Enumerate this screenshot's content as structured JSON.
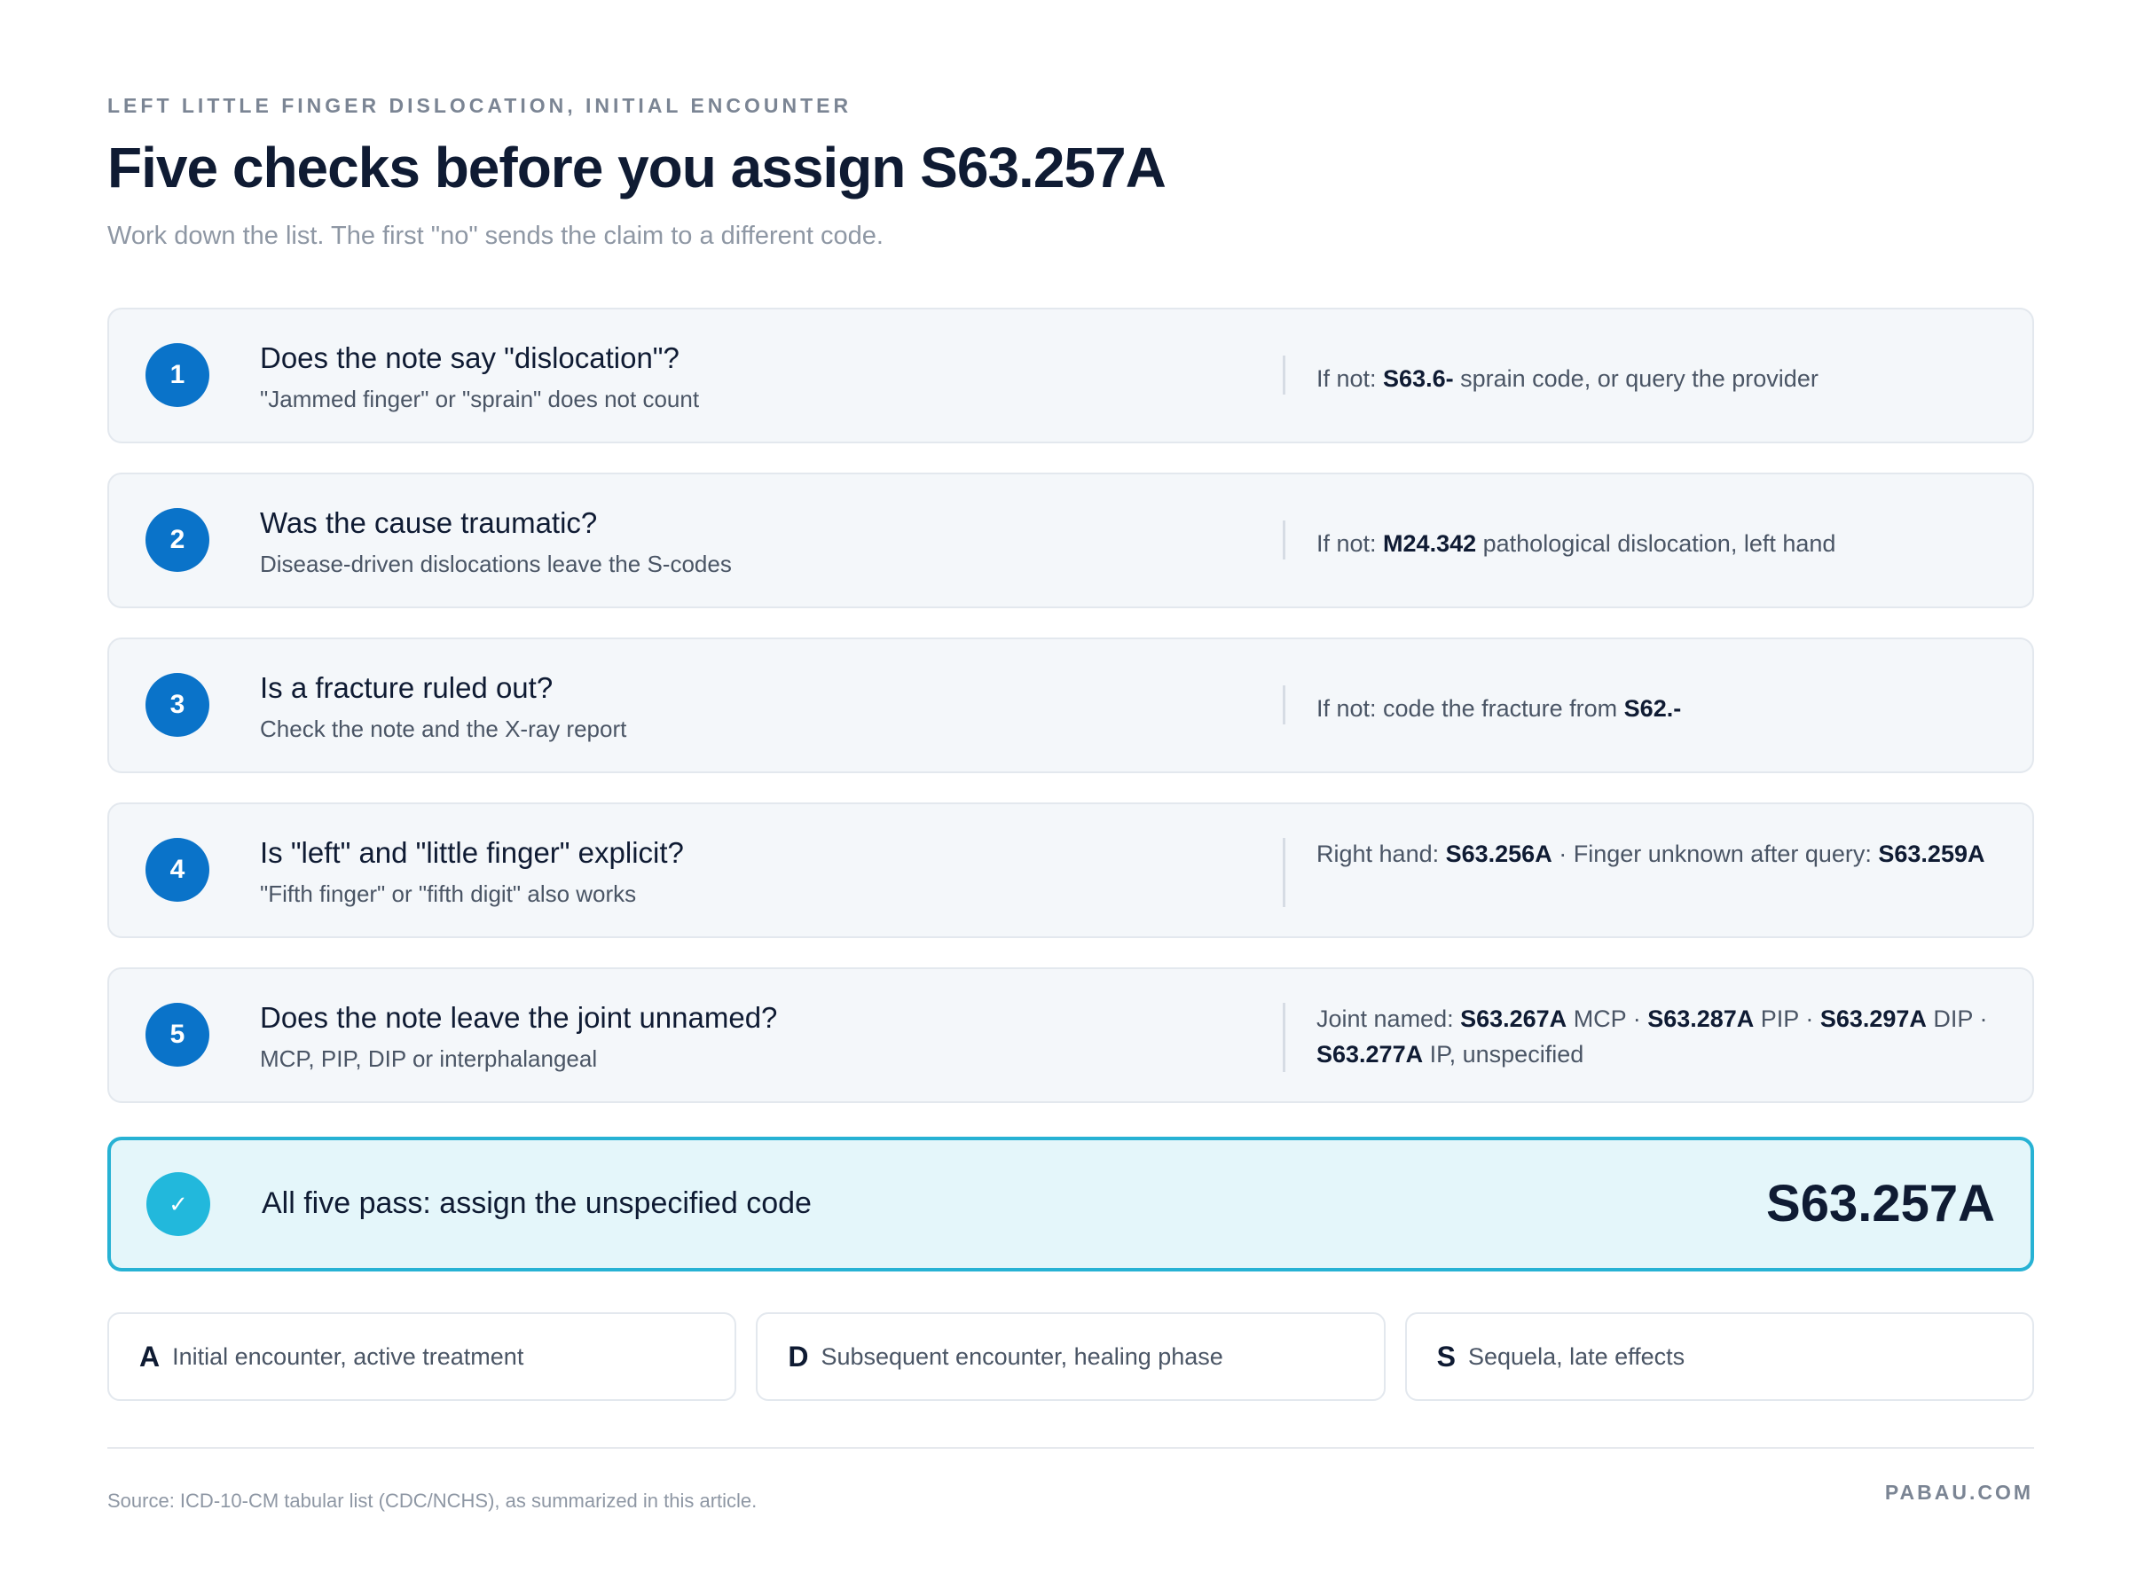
{
  "header": {
    "eyebrow": "LEFT LITTLE FINGER DISLOCATION, INITIAL ENCOUNTER",
    "title": "Five checks before you assign S63.257A",
    "subtitle": "Work down the list. The first \"no\" sends the claim to a different code."
  },
  "checks": [
    {
      "number": "1",
      "question": "Does the note say \"dislocation\"?",
      "hint": "\"Jammed finger\" or \"sprain\" does not count",
      "alt": [
        {
          "text": "If not: ",
          "bold": false
        },
        {
          "text": "S63.6-",
          "bold": true
        },
        {
          "text": " sprain code, or query the provider",
          "bold": false
        }
      ]
    },
    {
      "number": "2",
      "question": "Was the cause traumatic?",
      "hint": "Disease-driven dislocations leave the S-codes",
      "alt": [
        {
          "text": "If not: ",
          "bold": false
        },
        {
          "text": "M24.342",
          "bold": true
        },
        {
          "text": " pathological dislocation, left hand",
          "bold": false
        }
      ]
    },
    {
      "number": "3",
      "question": "Is a fracture ruled out?",
      "hint": "Check the note and the X-ray report",
      "alt": [
        {
          "text": "If not: code the fracture from ",
          "bold": false
        },
        {
          "text": "S62.-",
          "bold": true
        }
      ]
    },
    {
      "number": "4",
      "question": "Is \"left\" and \"little finger\" explicit?",
      "hint": "\"Fifth finger\" or \"fifth digit\" also works",
      "alt": [
        {
          "text": "Right hand: ",
          "bold": false
        },
        {
          "text": "S63.256A",
          "bold": true
        },
        {
          "text": " · Finger unknown after query: ",
          "bold": false
        },
        {
          "text": "S63.259A",
          "bold": true
        }
      ]
    },
    {
      "number": "5",
      "question": "Does the note leave the joint unnamed?",
      "hint": "MCP, PIP, DIP or interphalangeal",
      "alt": [
        {
          "text": "Joint named: ",
          "bold": false
        },
        {
          "text": "S63.267A",
          "bold": true
        },
        {
          "text": " MCP · ",
          "bold": false
        },
        {
          "text": "S63.287A",
          "bold": true
        },
        {
          "text": " PIP · ",
          "bold": false
        },
        {
          "text": "S63.297A",
          "bold": true
        },
        {
          "text": " DIP · ",
          "bold": false
        },
        {
          "text": "S63.277A",
          "bold": true
        },
        {
          "text": " IP, unspecified",
          "bold": false
        }
      ]
    }
  ],
  "result": {
    "icon": "checkmark-icon",
    "label": "All five pass: assign the unspecified code",
    "code": "S63.257A"
  },
  "suffixes": [
    {
      "letter": "A",
      "description": "Initial encounter, active treatment"
    },
    {
      "letter": "D",
      "description": "Subsequent encounter, healing phase"
    },
    {
      "letter": "S",
      "description": "Sequela, late effects"
    }
  ],
  "footer": {
    "source": "Source: ICD-10-CM tabular list (CDC/NCHS), as summarized in this article.",
    "brand": "PABAU.COM"
  },
  "colors": {
    "accent_blue": "#0a73c9",
    "result_teal": "#22b8dc",
    "result_border": "#27b2d4",
    "result_background": "#e4f6fa",
    "card_background": "#f4f7fa",
    "text_dark": "#0f1b33",
    "text_muted": "#8e97a4"
  }
}
